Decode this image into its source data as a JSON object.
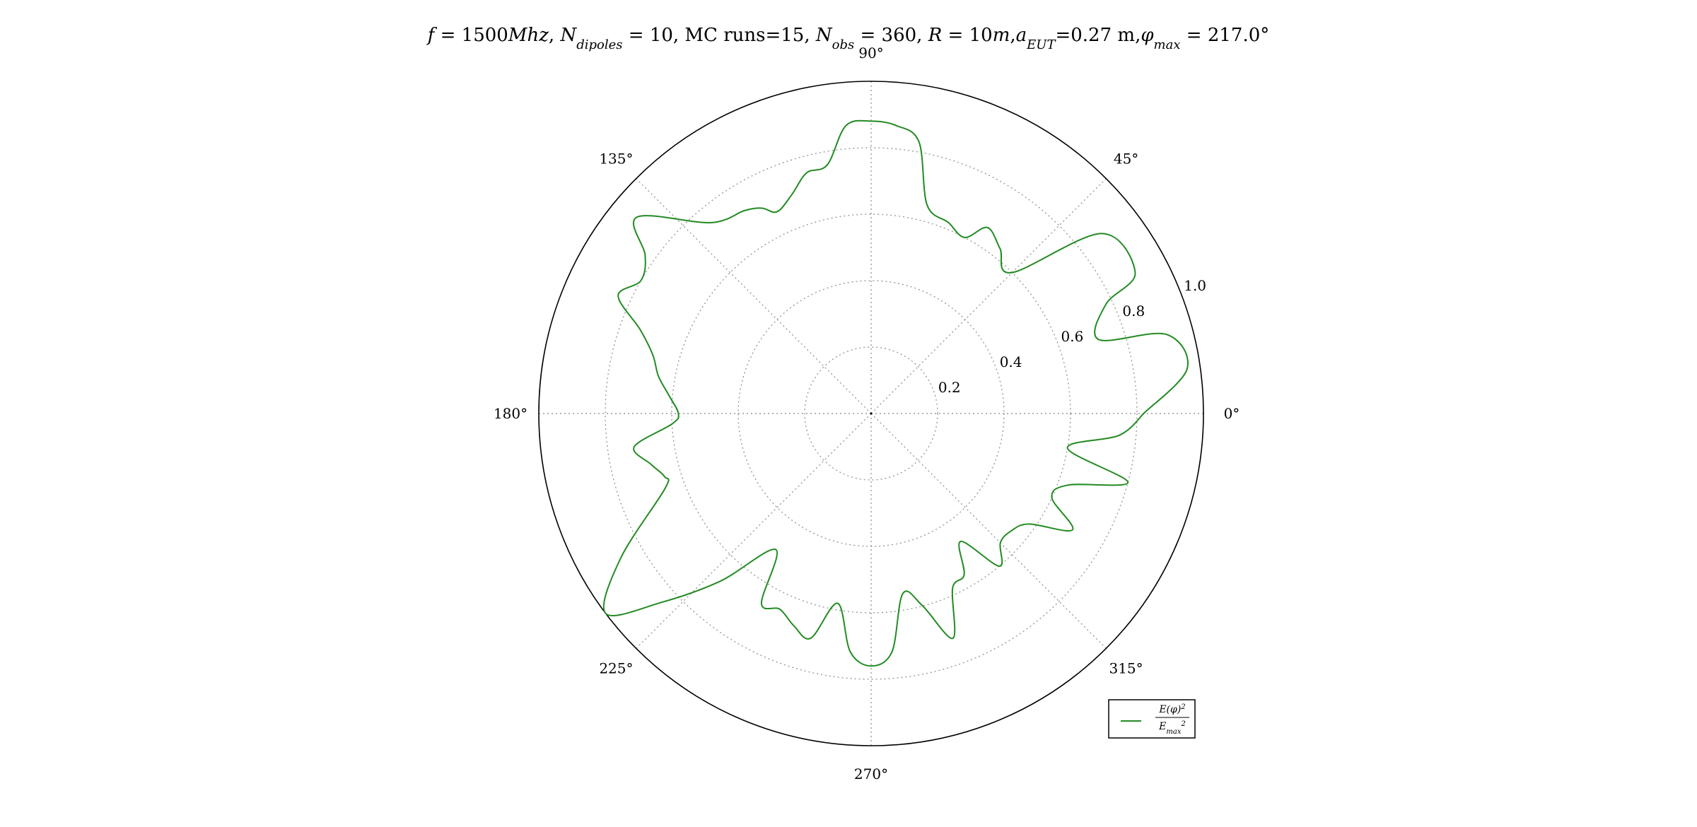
{
  "chart_data": {
    "type": "line",
    "coordinate_system": "polar",
    "title_parts": [
      {
        "text": "f",
        "style": "italic"
      },
      {
        "text": " = 1500"
      },
      {
        "text": "Mhz",
        "style": "italic"
      },
      {
        "text": ", "
      },
      {
        "text": "N",
        "style": "italic"
      },
      {
        "text": "dipoles",
        "style": "italic",
        "shift": "sub"
      },
      {
        "text": " = 10, MC runs=15, "
      },
      {
        "text": "N",
        "style": "italic"
      },
      {
        "text": "obs",
        "style": "italic",
        "shift": "sub"
      },
      {
        "text": " = 360, "
      },
      {
        "text": "R",
        "style": "italic"
      },
      {
        "text": " = 10"
      },
      {
        "text": "m",
        "style": "italic"
      },
      {
        "text": ","
      },
      {
        "text": "a",
        "style": "italic"
      },
      {
        "text": "EUT",
        "style": "italic",
        "shift": "sub"
      },
      {
        "text": "=0.27 m,"
      },
      {
        "text": "φ",
        "style": "italic"
      },
      {
        "text": "max",
        "style": "italic",
        "shift": "sub"
      },
      {
        "text": " = 217.0°"
      }
    ],
    "angular_ticks": [
      {
        "angle": 0,
        "label": "0°"
      },
      {
        "angle": 45,
        "label": "45°"
      },
      {
        "angle": 90,
        "label": "90°"
      },
      {
        "angle": 135,
        "label": "135°"
      },
      {
        "angle": 180,
        "label": "180°"
      },
      {
        "angle": 225,
        "label": "225°"
      },
      {
        "angle": 270,
        "label": "270°"
      },
      {
        "angle": 315,
        "label": "315°"
      }
    ],
    "radial_ticks": [
      {
        "value": 0.2,
        "label": "0.2"
      },
      {
        "value": 0.4,
        "label": "0.4"
      },
      {
        "value": 0.6,
        "label": "0.6"
      },
      {
        "value": 0.8,
        "label": "0.8"
      },
      {
        "value": 1.0,
        "label": "1.0"
      }
    ],
    "rlim": [
      0,
      1.0
    ],
    "grid": true,
    "legend_position": "bottom-right",
    "series": [
      {
        "name_parts": [
          {
            "text": "E(φ)",
            "style": "italic"
          },
          {
            "text": "2",
            "shift": "super"
          },
          {
            "text": "E",
            "style": "italic"
          },
          {
            "text": "max",
            "style": "italic",
            "shift": "sub"
          },
          {
            "text": "2",
            "shift": "super"
          }
        ],
        "color": "#228b22",
        "theta_deg": [
          0,
          8,
          15,
          18,
          25,
          28,
          38,
          45,
          52,
          58,
          62,
          68,
          75,
          80,
          85,
          90,
          95,
          100,
          105,
          110,
          115,
          118,
          122,
          130,
          140,
          145,
          150,
          155,
          160,
          165,
          170,
          175,
          180,
          183,
          188,
          193,
          197,
          200,
          210,
          217,
          222,
          228,
          235,
          240,
          245,
          250,
          255,
          260,
          265,
          270,
          275,
          280,
          285,
          290,
          295,
          300,
          305,
          310,
          315,
          320,
          325,
          330,
          335,
          340,
          345,
          350,
          355,
          360
        ],
        "r": [
          0.82,
          0.96,
          0.92,
          0.72,
          0.78,
          0.9,
          0.88,
          0.6,
          0.63,
          0.66,
          0.6,
          0.62,
          0.65,
          0.83,
          0.87,
          0.88,
          0.87,
          0.76,
          0.75,
          0.7,
          0.67,
          0.7,
          0.72,
          0.75,
          0.92,
          0.83,
          0.8,
          0.84,
          0.74,
          0.68,
          0.65,
          0.61,
          0.58,
          0.6,
          0.72,
          0.68,
          0.65,
          0.66,
          0.87,
          1.0,
          0.85,
          0.68,
          0.5,
          0.66,
          0.65,
          0.68,
          0.7,
          0.58,
          0.72,
          0.76,
          0.72,
          0.55,
          0.6,
          0.72,
          0.58,
          0.56,
          0.47,
          0.6,
          0.55,
          0.55,
          0.58,
          0.7,
          0.6,
          0.63,
          0.8,
          0.6,
          0.75,
          0.82
        ]
      }
    ]
  }
}
